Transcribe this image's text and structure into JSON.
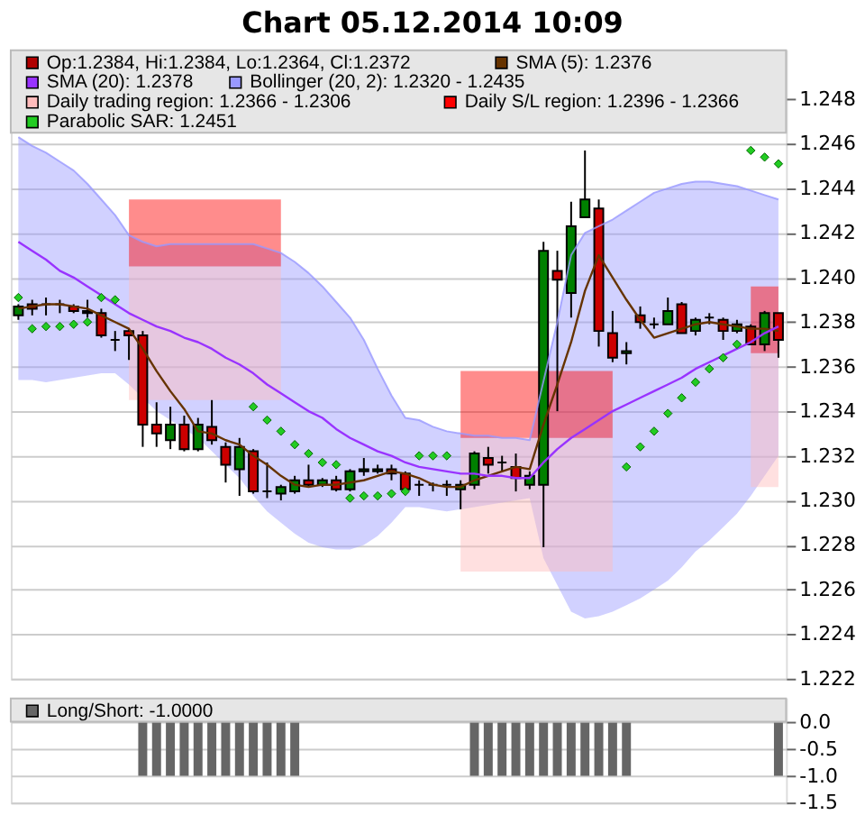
{
  "chart_data": [
    {
      "type": "candlestick",
      "title": "Chart 05.12.2014 10:09",
      "categories": [
        null,
        null,
        null,
        null,
        null,
        null,
        null,
        null,
        null,
        null,
        null,
        null,
        null,
        null,
        null,
        null,
        null,
        null,
        null,
        null,
        null,
        null,
        null,
        null,
        null,
        null,
        null,
        null,
        null,
        null,
        null,
        null,
        null,
        null,
        null,
        null,
        null,
        null,
        null,
        null,
        null,
        null,
        null,
        null,
        null,
        null,
        null,
        null,
        null,
        null,
        null,
        null,
        null,
        null,
        null,
        null
      ],
      "series": [
        {
          "type": "candlestick",
          "name": "Op:1.2384, Hi:1.2384, Lo:1.2364, Cl:1.2372",
          "color": "#b00000",
          "ohlc": [
            [
              1.2383,
              1.2388,
              1.2381,
              1.2387
            ],
            [
              1.2388,
              1.239,
              1.2383,
              1.2386
            ],
            [
              1.2388,
              1.2391,
              1.2383,
              1.2388
            ],
            [
              1.2388,
              1.239,
              1.2384,
              1.2388
            ],
            [
              1.2387,
              1.2388,
              1.2384,
              1.2385
            ],
            [
              1.2385,
              1.239,
              1.2382,
              1.2384
            ],
            [
              1.2384,
              1.2386,
              1.2373,
              1.2374
            ],
            [
              1.2372,
              1.2376,
              1.2367,
              1.2372
            ],
            [
              1.2376,
              1.2377,
              1.2363,
              1.2374
            ],
            [
              1.2374,
              1.2376,
              1.2324,
              1.2334
            ],
            [
              1.2334,
              1.2344,
              1.2324,
              1.233
            ],
            [
              1.2327,
              1.2342,
              1.2323,
              1.2334
            ],
            [
              1.2334,
              1.2338,
              1.2322,
              1.2323
            ],
            [
              1.2323,
              1.2337,
              1.2322,
              1.2334
            ],
            [
              1.2333,
              1.2345,
              1.2325,
              1.2327
            ],
            [
              1.2324,
              1.2326,
              1.2308,
              1.2316
            ],
            [
              1.2314,
              1.2328,
              1.2302,
              1.2324
            ],
            [
              1.2322,
              1.2323,
              1.2303,
              1.2304
            ],
            [
              1.2304,
              1.2317,
              1.2301,
              1.2304
            ],
            [
              1.2303,
              1.2307,
              1.23,
              1.2306
            ],
            [
              1.2304,
              1.2311,
              1.2303,
              1.2309
            ],
            [
              1.2309,
              1.2316,
              1.2306,
              1.2307
            ],
            [
              1.2307,
              1.231,
              1.2306,
              1.2309
            ],
            [
              1.2309,
              1.2311,
              1.2304,
              1.2305
            ],
            [
              1.2305,
              1.2314,
              1.2304,
              1.2313
            ],
            [
              1.2313,
              1.2319,
              1.2311,
              1.2314
            ],
            [
              1.2313,
              1.2316,
              1.2312,
              1.2314
            ],
            [
              1.2314,
              1.2316,
              1.2309,
              1.2312
            ],
            [
              1.2312,
              1.2313,
              1.2305,
              1.2305
            ],
            [
              1.2307,
              1.2309,
              1.2302,
              1.2307
            ],
            [
              1.2307,
              1.2308,
              1.2304,
              1.2307
            ],
            [
              1.2307,
              1.2309,
              1.2302,
              1.2307
            ],
            [
              1.2305,
              1.2309,
              1.2296,
              1.2307
            ],
            [
              1.2307,
              1.2322,
              1.2305,
              1.2321
            ],
            [
              1.2319,
              1.2324,
              1.2312,
              1.2316
            ],
            [
              1.2317,
              1.232,
              1.2313,
              1.2317
            ],
            [
              1.2315,
              1.2321,
              1.2304,
              1.231
            ],
            [
              1.2307,
              1.2313,
              1.2305,
              1.2311
            ],
            [
              1.2307,
              1.2416,
              1.2279,
              1.2412
            ],
            [
              1.2403,
              1.2412,
              1.234,
              1.2399
            ],
            [
              1.2393,
              1.2434,
              1.2382,
              1.2423
            ],
            [
              1.2427,
              1.2457,
              1.2427,
              1.2435
            ],
            [
              1.2431,
              1.2435,
              1.2369,
              1.2376
            ],
            [
              1.2375,
              1.2385,
              1.2362,
              1.2364
            ],
            [
              1.2366,
              1.2371,
              1.2361,
              1.2367
            ],
            [
              1.2383,
              1.2387,
              1.2377,
              1.238
            ],
            [
              1.2379,
              1.2382,
              1.2377,
              1.2379
            ],
            [
              1.2379,
              1.2391,
              1.2379,
              1.2385
            ],
            [
              1.2388,
              1.2389,
              1.2375,
              1.2375
            ],
            [
              1.2376,
              1.2382,
              1.2374,
              1.2381
            ],
            [
              1.2382,
              1.2384,
              1.2379,
              1.2382
            ],
            [
              1.2381,
              1.2382,
              1.2372,
              1.2376
            ],
            [
              1.2376,
              1.2381,
              1.2375,
              1.2379
            ],
            [
              1.2378,
              1.2379,
              1.237,
              1.237
            ],
            [
              1.237,
              1.2385,
              1.2367,
              1.2384
            ],
            [
              1.2384,
              1.2384,
              1.2364,
              1.2372
            ]
          ],
          "colors": [
            "#008000",
            "#cc0000",
            "#000000",
            "#000000",
            "#cc0000",
            "#000000",
            "#cc0000",
            "#000000",
            "#cc0000",
            "#cc0000",
            "#cc0000",
            "#008000",
            "#cc0000",
            "#008000",
            "#cc0000",
            "#cc0000",
            "#008000",
            "#cc0000",
            "#000000",
            "#008000",
            "#008000",
            "#cc0000",
            "#008000",
            "#cc0000",
            "#008000",
            "#008000",
            "#008000",
            "#cc0000",
            "#cc0000",
            "#000000",
            "#000000",
            "#000000",
            "#008000",
            "#008000",
            "#cc0000",
            "#000000",
            "#cc0000",
            "#008000",
            "#008000",
            "#cc0000",
            "#008000",
            "#008000",
            "#cc0000",
            "#cc0000",
            "#008000",
            "#cc0000",
            "#000000",
            "#008000",
            "#cc0000",
            "#008000",
            "#000000",
            "#cc0000",
            "#008000",
            "#cc0000",
            "#008000",
            "#cc0000"
          ]
        },
        {
          "type": "line",
          "name": "SMA (5): 1.2376",
          "color": "#663300",
          "values": [
            1.2386,
            1.2387,
            1.2388,
            1.2388,
            1.2387,
            1.2386,
            1.2383,
            1.238,
            1.2377,
            1.2368,
            1.2358,
            1.2349,
            1.2341,
            1.2331,
            1.233,
            1.2327,
            1.2325,
            1.232,
            1.2316,
            1.2311,
            1.2307,
            1.2306,
            1.2307,
            1.2307,
            1.2308,
            1.2309,
            1.2311,
            1.2313,
            1.2312,
            1.231,
            1.2307,
            1.2306,
            1.2306,
            1.2309,
            1.2311,
            1.2313,
            1.2315,
            1.2314,
            1.2334,
            1.2352,
            1.2371,
            1.2394,
            1.241,
            1.24,
            1.239,
            1.2381,
            1.2373,
            1.2375,
            1.2377,
            1.2379,
            1.238,
            1.2379,
            1.2378,
            1.2377,
            1.2377,
            1.2376
          ]
        },
        {
          "type": "line",
          "name": "SMA (20): 1.2378",
          "color": "#9933ff",
          "values": [
            1.2416,
            1.2412,
            1.2408,
            1.2403,
            1.24,
            1.2396,
            1.2392,
            1.2388,
            1.2384,
            1.2381,
            1.2378,
            1.2376,
            1.2373,
            1.2371,
            1.2368,
            1.2364,
            1.2361,
            1.2357,
            1.2352,
            1.2348,
            1.2344,
            1.234,
            1.2337,
            1.2332,
            1.2328,
            1.2325,
            1.2322,
            1.232,
            1.2317,
            1.2315,
            1.2314,
            1.2313,
            1.2312,
            1.2312,
            1.2311,
            1.2311,
            1.231,
            1.231,
            1.2317,
            1.2323,
            1.2328,
            1.2332,
            1.2336,
            1.234,
            1.2343,
            1.2346,
            1.2349,
            1.2352,
            1.2355,
            1.2359,
            1.2362,
            1.2365,
            1.2368,
            1.2371,
            1.2375,
            1.2378
          ]
        },
        {
          "type": "line",
          "name": "Bollinger (20, 2): 1.2320 - 1.2435",
          "color": "#9999ff",
          "values": [
            1.2463,
            1.2459,
            1.2456,
            1.2452,
            1.2448,
            1.2442,
            1.2435,
            1.2428,
            1.2419,
            1.2416,
            1.2414,
            1.2415,
            1.2415,
            1.2415,
            1.2415,
            1.2415,
            1.2415,
            1.2415,
            1.2413,
            1.2411,
            1.2407,
            1.2402,
            1.2396,
            1.2389,
            1.2382,
            1.2372,
            1.2359,
            1.2347,
            1.2337,
            1.2336,
            1.2333,
            1.2331,
            1.233,
            1.2329,
            1.2329,
            1.2328,
            1.2328,
            1.2327,
            null,
            1.238,
            1.241,
            1.242,
            1.2423,
            1.2426,
            1.243,
            1.2434,
            1.2438,
            1.244,
            1.2442,
            1.2443,
            1.2443,
            1.2442,
            1.2441,
            1.2439,
            1.2437,
            1.2435
          ],
          "upper": [
            1.2463,
            1.2459,
            1.2456,
            1.2452,
            1.2448,
            1.2442,
            1.2435,
            1.2428,
            1.2419,
            1.2416,
            1.2414,
            1.2415,
            1.2415,
            1.2415,
            1.2415,
            1.2415,
            1.2415,
            1.2415,
            1.2413,
            1.2411,
            1.2407,
            1.2402,
            1.2396,
            1.2389,
            1.2382,
            1.2372,
            1.2359,
            1.2347,
            1.2337,
            1.2336,
            1.2333,
            1.2331,
            1.233,
            1.2329,
            1.2329,
            1.2328,
            1.2328,
            1.2327,
            1.2352,
            1.238,
            1.241,
            1.242,
            1.2423,
            1.2426,
            1.243,
            1.2434,
            1.2438,
            1.244,
            1.2442,
            1.2443,
            1.2443,
            1.2442,
            1.2441,
            1.2439,
            1.2437,
            1.2435
          ],
          "lower": [
            1.2354,
            1.2354,
            1.2353,
            1.2354,
            1.2355,
            1.2356,
            1.2357,
            1.2357,
            1.2352,
            1.2346,
            1.234,
            1.2336,
            1.2332,
            1.2328,
            1.2322,
            1.2316,
            1.231,
            1.2302,
            1.2295,
            1.229,
            1.2285,
            1.2281,
            1.2279,
            1.2278,
            1.2278,
            1.228,
            1.2284,
            1.229,
            1.2297,
            1.2297,
            1.2296,
            1.2295,
            1.2296,
            1.2297,
            1.2298,
            1.2299,
            1.23,
            1.2301,
            1.2274,
            1.2262,
            1.225,
            1.2247,
            1.2248,
            1.225,
            1.2253,
            1.2256,
            1.226,
            1.2264,
            1.227,
            1.2277,
            1.2282,
            1.2288,
            1.2294,
            1.2302,
            1.2311,
            1.232
          ]
        },
        {
          "type": "line",
          "color": "#ffbbbb",
          "values": [
            null,
            null,
            null,
            null,
            null,
            null,
            null,
            null,
            null,
            null,
            null,
            null,
            null,
            null,
            null,
            null,
            null,
            null,
            null,
            null,
            null,
            null,
            null,
            null,
            null,
            null,
            null,
            null,
            null,
            null,
            null,
            null,
            null,
            null,
            null,
            null,
            null,
            null,
            null,
            null,
            null,
            null,
            null,
            null,
            null,
            null,
            null,
            null,
            null,
            null,
            null,
            null,
            null,
            null,
            null,
            null
          ],
          "upper": [
            null,
            null,
            null,
            null,
            null,
            null,
            null,
            null,
            1.2405,
            1.2405,
            1.2405,
            1.2405,
            1.2405,
            1.2405,
            1.2405,
            1.2405,
            1.2405,
            1.2405,
            1.2405,
            1.2405,
            null,
            null,
            null,
            null,
            null,
            null,
            null,
            null,
            null,
            null,
            null,
            null,
            null,
            null,
            null,
            null,
            null,
            null,
            null,
            null,
            null,
            null,
            null,
            null,
            null,
            null,
            null,
            null,
            null,
            null,
            null,
            null,
            null,
            null,
            null,
            null
          ],
          "lower": [
            null,
            null,
            null,
            null,
            null,
            null,
            null,
            null,
            1.2345,
            1.2345,
            1.2345,
            1.2345,
            1.2345,
            1.2345,
            1.2345,
            1.2345,
            1.2345,
            1.2345,
            1.2345,
            1.2345,
            null,
            null,
            null,
            null,
            null,
            null,
            null,
            null,
            null,
            null,
            null,
            null,
            null,
            null,
            null,
            null,
            null,
            null,
            null,
            null,
            null,
            null,
            null,
            null,
            null,
            null,
            null,
            null,
            null,
            null,
            null,
            null,
            null,
            null,
            null,
            null
          ]
        },
        {
          "type": "line",
          "color": "#ffbbbb",
          "values": [
            null,
            null,
            null,
            null,
            null,
            null,
            null,
            null,
            null,
            null,
            null,
            null,
            null,
            null,
            null,
            null,
            null,
            null,
            null,
            null,
            null,
            null,
            null,
            null,
            null,
            null,
            null,
            null,
            null,
            null,
            null,
            null,
            null,
            null,
            null,
            null,
            null,
            null,
            null,
            null,
            null,
            null,
            null,
            null,
            null,
            null,
            null,
            null,
            null,
            null,
            null,
            null,
            null,
            null,
            null,
            null
          ],
          "upper": [
            null,
            null,
            null,
            null,
            null,
            null,
            null,
            null,
            null,
            null,
            null,
            null,
            null,
            null,
            null,
            null,
            null,
            null,
            null,
            null,
            null,
            null,
            null,
            null,
            null,
            null,
            null,
            null,
            null,
            null,
            null,
            null,
            1.2328,
            1.2328,
            1.2328,
            1.2328,
            1.2328,
            1.2328,
            1.2328,
            1.2328,
            1.2328,
            1.2328,
            1.2328,
            1.2328,
            null,
            null,
            null,
            null,
            null,
            null,
            null,
            null,
            null,
            null,
            null,
            null
          ],
          "lower": [
            null,
            null,
            null,
            null,
            null,
            null,
            null,
            null,
            null,
            null,
            null,
            null,
            null,
            null,
            null,
            null,
            null,
            null,
            null,
            null,
            null,
            null,
            null,
            null,
            null,
            null,
            null,
            null,
            null,
            null,
            null,
            null,
            1.2268,
            1.2268,
            1.2268,
            1.2268,
            1.2268,
            1.2268,
            1.2268,
            1.2268,
            1.2268,
            1.2268,
            1.2268,
            1.2268,
            null,
            null,
            null,
            null,
            null,
            null,
            null,
            null,
            null,
            null,
            null,
            null
          ]
        },
        {
          "type": "line",
          "name": "Daily trading region: 1.2366 - 1.2306",
          "color": "#ffbbbb",
          "values": [
            null,
            null,
            null,
            null,
            null,
            null,
            null,
            null,
            null,
            null,
            null,
            null,
            null,
            null,
            null,
            null,
            null,
            null,
            null,
            null,
            null,
            null,
            null,
            null,
            null,
            null,
            null,
            null,
            null,
            null,
            null,
            null,
            null,
            null,
            null,
            null,
            null,
            null,
            null,
            null,
            null,
            null,
            null,
            null,
            null,
            null,
            null,
            null,
            null,
            null,
            null,
            null,
            null,
            null,
            null,
            null
          ],
          "upper": [
            null,
            null,
            null,
            null,
            null,
            null,
            null,
            null,
            null,
            null,
            null,
            null,
            null,
            null,
            null,
            null,
            null,
            null,
            null,
            null,
            null,
            null,
            null,
            null,
            null,
            null,
            null,
            null,
            null,
            null,
            null,
            null,
            null,
            null,
            null,
            null,
            null,
            null,
            null,
            null,
            null,
            null,
            null,
            null,
            null,
            null,
            null,
            null,
            null,
            null,
            null,
            null,
            null,
            1.2366,
            1.2366,
            1.2366
          ],
          "lower": [
            null,
            null,
            null,
            null,
            null,
            null,
            null,
            null,
            null,
            null,
            null,
            null,
            null,
            null,
            null,
            null,
            null,
            null,
            null,
            null,
            null,
            null,
            null,
            null,
            null,
            null,
            null,
            null,
            null,
            null,
            null,
            null,
            null,
            null,
            null,
            null,
            null,
            null,
            null,
            null,
            null,
            null,
            null,
            null,
            null,
            null,
            null,
            null,
            null,
            null,
            null,
            null,
            null,
            1.2306,
            1.2306,
            1.2306
          ]
        },
        {
          "type": "line",
          "color": "#ff0000",
          "values": [
            null,
            null,
            null,
            null,
            null,
            null,
            null,
            null,
            null,
            null,
            null,
            null,
            null,
            null,
            null,
            null,
            null,
            null,
            null,
            null,
            null,
            null,
            null,
            null,
            null,
            null,
            null,
            null,
            null,
            null,
            null,
            null,
            null,
            null,
            null,
            null,
            null,
            null,
            null,
            null,
            null,
            null,
            null,
            null,
            null,
            null,
            null,
            null,
            null,
            null,
            null,
            null,
            null,
            null,
            null,
            null
          ],
          "upper": [
            null,
            null,
            null,
            null,
            null,
            null,
            null,
            null,
            1.2435,
            1.2435,
            1.2435,
            1.2435,
            1.2435,
            1.2435,
            1.2435,
            1.2435,
            1.2435,
            1.2435,
            1.2435,
            1.2435,
            null,
            null,
            null,
            null,
            null,
            null,
            null,
            null,
            null,
            null,
            null,
            null,
            null,
            null,
            null,
            null,
            null,
            null,
            null,
            null,
            null,
            null,
            null,
            null,
            null,
            null,
            null,
            null,
            null,
            null,
            null,
            null,
            null,
            null,
            null,
            null
          ],
          "lower": [
            null,
            null,
            null,
            null,
            null,
            null,
            null,
            null,
            1.2405,
            1.2405,
            1.2405,
            1.2405,
            1.2405,
            1.2405,
            1.2405,
            1.2405,
            1.2405,
            1.2405,
            1.2405,
            1.2405,
            null,
            null,
            null,
            null,
            null,
            null,
            null,
            null,
            null,
            null,
            null,
            null,
            null,
            null,
            null,
            null,
            null,
            null,
            null,
            null,
            null,
            null,
            null,
            null,
            null,
            null,
            null,
            null,
            null,
            null,
            null,
            null,
            null,
            null,
            null,
            null
          ]
        },
        {
          "type": "line",
          "color": "#ff0000",
          "values": [
            null,
            null,
            null,
            null,
            null,
            null,
            null,
            null,
            null,
            null,
            null,
            null,
            null,
            null,
            null,
            null,
            null,
            null,
            null,
            null,
            null,
            null,
            null,
            null,
            null,
            null,
            null,
            null,
            null,
            null,
            null,
            null,
            null,
            null,
            null,
            null,
            null,
            null,
            null,
            null,
            null,
            null,
            null,
            null,
            null,
            null,
            null,
            null,
            null,
            null,
            null,
            null,
            null,
            null,
            null,
            null
          ],
          "upper": [
            null,
            null,
            null,
            null,
            null,
            null,
            null,
            null,
            null,
            null,
            null,
            null,
            null,
            null,
            null,
            null,
            null,
            null,
            null,
            null,
            null,
            null,
            null,
            null,
            null,
            null,
            null,
            null,
            null,
            null,
            null,
            null,
            1.2358,
            1.2358,
            1.2358,
            1.2358,
            1.2358,
            1.2358,
            1.2358,
            1.2358,
            1.2358,
            1.2358,
            1.2358,
            1.2358,
            null,
            null,
            null,
            null,
            null,
            null,
            null,
            null,
            null,
            null,
            null,
            null
          ],
          "lower": [
            null,
            null,
            null,
            null,
            null,
            null,
            null,
            null,
            null,
            null,
            null,
            null,
            null,
            null,
            null,
            null,
            null,
            null,
            null,
            null,
            null,
            null,
            null,
            null,
            null,
            null,
            null,
            null,
            null,
            null,
            null,
            null,
            1.2328,
            1.2328,
            1.2328,
            1.2328,
            1.2328,
            1.2328,
            1.2328,
            1.2328,
            1.2328,
            1.2328,
            1.2328,
            1.2328,
            null,
            null,
            null,
            null,
            null,
            null,
            null,
            null,
            null,
            null,
            null,
            null
          ]
        },
        {
          "type": "line",
          "name": "Daily S/L region: 1.2396 - 1.2366",
          "color": "#ff0000",
          "values": [
            null,
            null,
            null,
            null,
            null,
            null,
            null,
            null,
            null,
            null,
            null,
            null,
            null,
            null,
            null,
            null,
            null,
            null,
            null,
            null,
            null,
            null,
            null,
            null,
            null,
            null,
            null,
            null,
            null,
            null,
            null,
            null,
            null,
            null,
            null,
            null,
            null,
            null,
            null,
            null,
            null,
            null,
            null,
            null,
            null,
            null,
            null,
            null,
            null,
            null,
            null,
            null,
            null,
            null,
            null,
            null
          ],
          "upper": [
            null,
            null,
            null,
            null,
            null,
            null,
            null,
            null,
            null,
            null,
            null,
            null,
            null,
            null,
            null,
            null,
            null,
            null,
            null,
            null,
            null,
            null,
            null,
            null,
            null,
            null,
            null,
            null,
            null,
            null,
            null,
            null,
            null,
            null,
            null,
            null,
            null,
            null,
            null,
            null,
            null,
            null,
            null,
            null,
            null,
            null,
            null,
            null,
            null,
            null,
            null,
            null,
            null,
            1.2396,
            1.2396,
            1.2396
          ],
          "lower": [
            null,
            null,
            null,
            null,
            null,
            null,
            null,
            null,
            null,
            null,
            null,
            null,
            null,
            null,
            null,
            null,
            null,
            null,
            null,
            null,
            null,
            null,
            null,
            null,
            null,
            null,
            null,
            null,
            null,
            null,
            null,
            null,
            null,
            null,
            null,
            null,
            null,
            null,
            null,
            null,
            null,
            null,
            null,
            null,
            null,
            null,
            null,
            null,
            null,
            null,
            null,
            null,
            null,
            1.2366,
            1.2366,
            1.2366
          ]
        },
        {
          "type": "scatter",
          "name": "Parabolic SAR: 1.2451",
          "color": "#22cc22",
          "marker": "diamond",
          "values": [
            1.2391,
            1.2377,
            1.2378,
            1.2378,
            1.2379,
            1.238,
            1.2391,
            1.239,
            null,
            null,
            null,
            null,
            null,
            null,
            null,
            null,
            null,
            1.2342,
            1.2336,
            1.2331,
            1.2325,
            1.2321,
            1.2317,
            1.2316,
            1.2301,
            1.2302,
            1.2302,
            1.2303,
            1.2304,
            1.232,
            1.232,
            1.232,
            null,
            null,
            null,
            null,
            null,
            null,
            null,
            null,
            null,
            null,
            null,
            null,
            1.2315,
            1.2324,
            1.2331,
            1.2339,
            1.2346,
            1.2353,
            1.2359,
            1.2364,
            1.237,
            1.2457,
            1.2454,
            1.2451
          ]
        }
      ],
      "ylim": [
        1.222,
        1.2502
      ],
      "yticks": [
        {
          "value": 1.222,
          "label": "1.222"
        },
        {
          "value": 1.224,
          "label": "1.224"
        },
        {
          "value": 1.226,
          "label": "1.226"
        },
        {
          "value": 1.228,
          "label": "1.228"
        },
        {
          "value": 1.23,
          "label": "1.230"
        },
        {
          "value": 1.232,
          "label": "1.232"
        },
        {
          "value": 1.234,
          "label": "1.234"
        },
        {
          "value": 1.236,
          "label": "1.236"
        },
        {
          "value": 1.238,
          "label": "1.238"
        },
        {
          "value": 1.24,
          "label": "1.240"
        },
        {
          "value": 1.242,
          "label": "1.242"
        },
        {
          "value": 1.244,
          "label": "1.244"
        },
        {
          "value": 1.246,
          "label": "1.246"
        },
        {
          "value": 1.248,
          "label": "1.248"
        }
      ],
      "grid": "y",
      "legend": "top left",
      "tick_labels": "y"
    },
    {
      "type": "bar",
      "categories": [
        null,
        null,
        null,
        null,
        null,
        null,
        null,
        null,
        null,
        null,
        null,
        null,
        null,
        null,
        null,
        null,
        null,
        null,
        null,
        null,
        null,
        null,
        null,
        null,
        null,
        null,
        null,
        null,
        null,
        null,
        null,
        null,
        null,
        null,
        null,
        null,
        null,
        null,
        null,
        null,
        null,
        null,
        null,
        null,
        null,
        null,
        null,
        null,
        null,
        null,
        null,
        null,
        null,
        null,
        null,
        null
      ],
      "series": [
        {
          "name": "Long/Short: -1.0000",
          "color": "#666666",
          "values": [
            0,
            0,
            0,
            0,
            0,
            0,
            0,
            0,
            0,
            -1,
            -1,
            -1,
            -1,
            -1,
            -1,
            -1,
            -1,
            -1,
            -1,
            -1,
            -1,
            0,
            0,
            0,
            0,
            0,
            0,
            0,
            0,
            0,
            0,
            0,
            0,
            -1,
            -1,
            -1,
            -1,
            -1,
            -1,
            -1,
            -1,
            -1,
            -1,
            -1,
            -1,
            0,
            0,
            0,
            0,
            0,
            0,
            0,
            0,
            0,
            0,
            -1
          ]
        }
      ],
      "ylim": [
        -1.5,
        0.45
      ],
      "yticks": [
        {
          "value": 0,
          "label": "0.0"
        },
        {
          "value": -0.5,
          "label": "-0.5"
        },
        {
          "value": -1,
          "label": "-1.0"
        },
        {
          "value": -1.5,
          "label": "-1.5"
        }
      ],
      "grid": "y",
      "legend": "top left",
      "tick_labels": "y"
    }
  ]
}
